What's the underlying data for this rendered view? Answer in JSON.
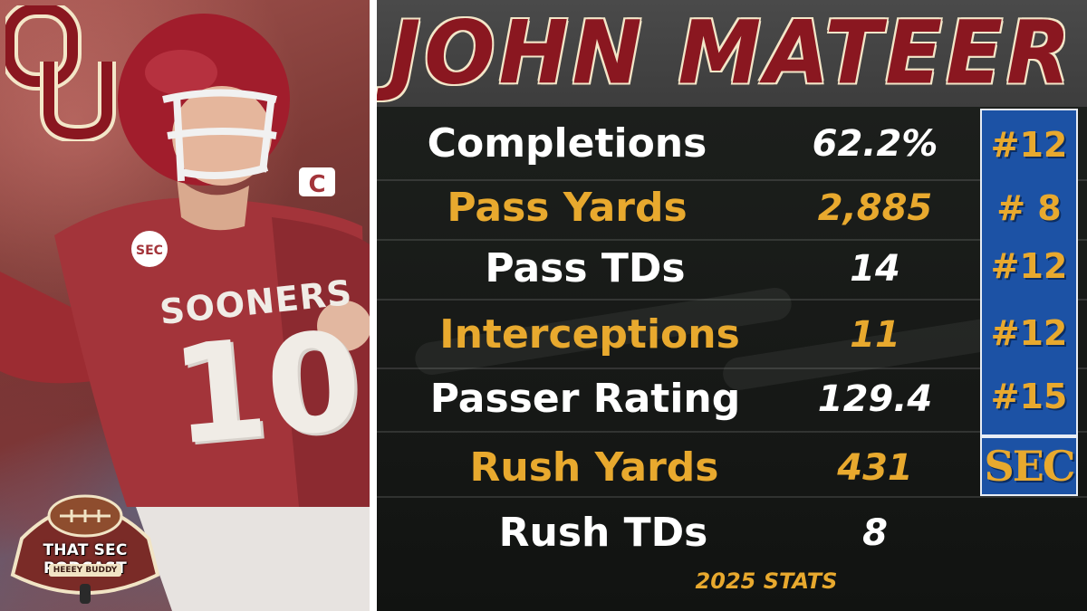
{
  "title": "JOHN MATEER",
  "stats": [
    {
      "label": "Completions",
      "value": "62.2%",
      "color": "white"
    },
    {
      "label": "Pass Yards",
      "value": "2,885",
      "color": "gold"
    },
    {
      "label": "Pass TDs",
      "value": "14",
      "color": "white"
    },
    {
      "label": "Interceptions",
      "value": "11",
      "color": "gold"
    },
    {
      "label": "Passer Rating",
      "value": "129.4",
      "color": "white"
    },
    {
      "label": "Rush Yards",
      "value": "431",
      "color": "gold"
    },
    {
      "label": "Rush TDs",
      "value": "8",
      "color": "white"
    }
  ],
  "ranks": [
    "#12",
    "# 8",
    "#12",
    "#12",
    "#15"
  ],
  "conference_logo": "SEC",
  "footer": "2025 STATS",
  "photo": {
    "jersey_text": "SOONERS",
    "jersey_number": "10",
    "team_logo": "OU",
    "podcast_name": "THAT SEC PODCAST",
    "podcast_tagline": "HEEEY BUDDY"
  },
  "colors": {
    "crimson": "#8a1720",
    "gold": "#e8a92e",
    "sec_blue": "#1c52a5",
    "cream": "#f3e6c8"
  }
}
